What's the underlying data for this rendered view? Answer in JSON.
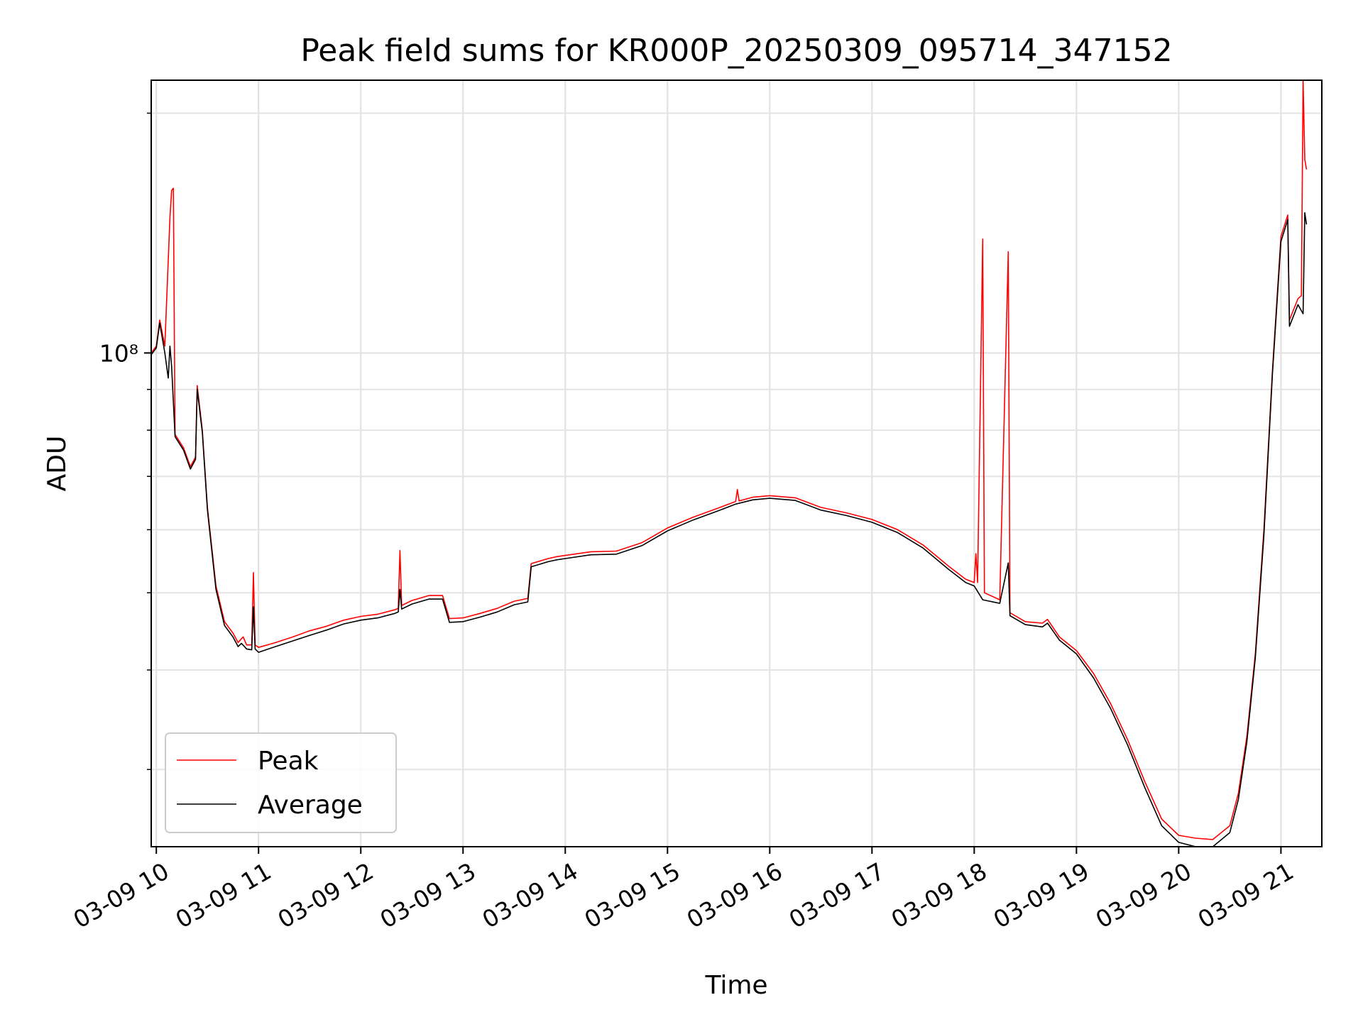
{
  "chart_data": {
    "type": "line",
    "title": "Peak field sums for KR000P_20250309_095714_347152",
    "xlabel": "Time",
    "ylabel": "ADU",
    "y_scale": "log",
    "grid": true,
    "legend_placement": "lower-left",
    "xlim": [
      "2025-03-09 09:57",
      "2025-03-09 21:24"
    ],
    "ylim": [
      24000000,
      220000000
    ],
    "x_ticks": [
      {
        "t": "2025-03-09 10:00",
        "label": "03-09 10"
      },
      {
        "t": "2025-03-09 11:00",
        "label": "03-09 11"
      },
      {
        "t": "2025-03-09 12:00",
        "label": "03-09 12"
      },
      {
        "t": "2025-03-09 13:00",
        "label": "03-09 13"
      },
      {
        "t": "2025-03-09 14:00",
        "label": "03-09 14"
      },
      {
        "t": "2025-03-09 15:00",
        "label": "03-09 15"
      },
      {
        "t": "2025-03-09 16:00",
        "label": "03-09 16"
      },
      {
        "t": "2025-03-09 17:00",
        "label": "03-09 17"
      },
      {
        "t": "2025-03-09 18:00",
        "label": "03-09 18"
      },
      {
        "t": "2025-03-09 19:00",
        "label": "03-09 19"
      },
      {
        "t": "2025-03-09 20:00",
        "label": "03-09 20"
      },
      {
        "t": "2025-03-09 21:00",
        "label": "03-09 21"
      }
    ],
    "y_ticks": [
      {
        "value": 100000000,
        "label": "10⁸"
      }
    ],
    "series": [
      {
        "name": "Peak",
        "color": "#ff0000",
        "points": [
          [
            "2025-03-09 09:57",
            100000000
          ],
          [
            "2025-03-09 10:00",
            102000000
          ],
          [
            "2025-03-09 10:02",
            110000000
          ],
          [
            "2025-03-09 10:05",
            102000000
          ],
          [
            "2025-03-09 10:08",
            148000000
          ],
          [
            "2025-03-09 10:09",
            160000000
          ],
          [
            "2025-03-09 10:10",
            161000000
          ],
          [
            "2025-03-09 10:11",
            79000000
          ],
          [
            "2025-03-09 10:16",
            76000000
          ],
          [
            "2025-03-09 10:20",
            72000000
          ],
          [
            "2025-03-09 10:23",
            74000000
          ],
          [
            "2025-03-09 10:24",
            91000000
          ],
          [
            "2025-03-09 10:27",
            80000000
          ],
          [
            "2025-03-09 10:30",
            64000000
          ],
          [
            "2025-03-09 10:35",
            51000000
          ],
          [
            "2025-03-09 10:40",
            46000000
          ],
          [
            "2025-03-09 10:45",
            44500000
          ],
          [
            "2025-03-09 10:48",
            43300000
          ],
          [
            "2025-03-09 10:50",
            43800000
          ],
          [
            "2025-03-09 10:51",
            44000000
          ],
          [
            "2025-03-09 10:53",
            43000000
          ],
          [
            "2025-03-09 10:56",
            43000000
          ],
          [
            "2025-03-09 10:57",
            53000000
          ],
          [
            "2025-03-09 10:58",
            43000000
          ],
          [
            "2025-03-09 11:00",
            42700000
          ],
          [
            "2025-03-09 11:10",
            43300000
          ],
          [
            "2025-03-09 11:20",
            44000000
          ],
          [
            "2025-03-09 11:30",
            44800000
          ],
          [
            "2025-03-09 11:40",
            45400000
          ],
          [
            "2025-03-09 11:50",
            46200000
          ],
          [
            "2025-03-09 12:00",
            46700000
          ],
          [
            "2025-03-09 12:10",
            47000000
          ],
          [
            "2025-03-09 12:20",
            47600000
          ],
          [
            "2025-03-09 12:22",
            47800000
          ],
          [
            "2025-03-09 12:23",
            56500000
          ],
          [
            "2025-03-09 12:24",
            48200000
          ],
          [
            "2025-03-09 12:30",
            48900000
          ],
          [
            "2025-03-09 12:40",
            49600000
          ],
          [
            "2025-03-09 12:48",
            49600000
          ],
          [
            "2025-03-09 12:52",
            46400000
          ],
          [
            "2025-03-09 13:00",
            46500000
          ],
          [
            "2025-03-09 13:10",
            47100000
          ],
          [
            "2025-03-09 13:20",
            47800000
          ],
          [
            "2025-03-09 13:30",
            48800000
          ],
          [
            "2025-03-09 13:38",
            49200000
          ],
          [
            "2025-03-09 13:40",
            54400000
          ],
          [
            "2025-03-09 13:50",
            55200000
          ],
          [
            "2025-03-09 13:55",
            55500000
          ],
          [
            "2025-03-09 14:00",
            55700000
          ],
          [
            "2025-03-09 14:15",
            56300000
          ],
          [
            "2025-03-09 14:30",
            56400000
          ],
          [
            "2025-03-09 14:45",
            57800000
          ],
          [
            "2025-03-09 15:00",
            60300000
          ],
          [
            "2025-03-09 15:15",
            62200000
          ],
          [
            "2025-03-09 15:30",
            63900000
          ],
          [
            "2025-03-09 15:40",
            65100000
          ],
          [
            "2025-03-09 15:41",
            67400000
          ],
          [
            "2025-03-09 15:42",
            65200000
          ],
          [
            "2025-03-09 15:50",
            65900000
          ],
          [
            "2025-03-09 16:00",
            66200000
          ],
          [
            "2025-03-09 16:15",
            65800000
          ],
          [
            "2025-03-09 16:30",
            64000000
          ],
          [
            "2025-03-09 16:45",
            63000000
          ],
          [
            "2025-03-09 17:00",
            61800000
          ],
          [
            "2025-03-09 17:15",
            60000000
          ],
          [
            "2025-03-09 17:30",
            57400000
          ],
          [
            "2025-03-09 17:45",
            54000000
          ],
          [
            "2025-03-09 17:55",
            52000000
          ],
          [
            "2025-03-09 18:00",
            51500000
          ],
          [
            "2025-03-09 18:01",
            56000000
          ],
          [
            "2025-03-09 18:02",
            51500000
          ],
          [
            "2025-03-09 18:05",
            139000000
          ],
          [
            "2025-03-09 18:06",
            50000000
          ],
          [
            "2025-03-09 18:15",
            49000000
          ],
          [
            "2025-03-09 18:20",
            134000000
          ],
          [
            "2025-03-09 18:21",
            47200000
          ],
          [
            "2025-03-09 18:30",
            46000000
          ],
          [
            "2025-03-09 18:40",
            45800000
          ],
          [
            "2025-03-09 18:43",
            46300000
          ],
          [
            "2025-03-09 18:50",
            44000000
          ],
          [
            "2025-03-09 19:00",
            42300000
          ],
          [
            "2025-03-09 19:10",
            39600000
          ],
          [
            "2025-03-09 19:20",
            36300000
          ],
          [
            "2025-03-09 19:30",
            32700000
          ],
          [
            "2025-03-09 19:40",
            29000000
          ],
          [
            "2025-03-09 19:50",
            26000000
          ],
          [
            "2025-03-09 20:00",
            24800000
          ],
          [
            "2025-03-09 20:10",
            24600000
          ],
          [
            "2025-03-09 20:20",
            24500000
          ],
          [
            "2025-03-09 20:30",
            25500000
          ],
          [
            "2025-03-09 20:35",
            28000000
          ],
          [
            "2025-03-09 20:40",
            33000000
          ],
          [
            "2025-03-09 20:45",
            42000000
          ],
          [
            "2025-03-09 20:50",
            60000000
          ],
          [
            "2025-03-09 20:55",
            95000000
          ],
          [
            "2025-03-09 21:00",
            140000000
          ],
          [
            "2025-03-09 21:04",
            149000000
          ],
          [
            "2025-03-09 21:05",
            110000000
          ],
          [
            "2025-03-09 21:10",
            117000000
          ],
          [
            "2025-03-09 21:12",
            118000000
          ],
          [
            "2025-03-09 21:13",
            220000000
          ],
          [
            "2025-03-09 21:14",
            175000000
          ],
          [
            "2025-03-09 21:15",
            170000000
          ]
        ]
      },
      {
        "name": "Average",
        "color": "#000000",
        "points": [
          [
            "2025-03-09 09:57",
            99500000
          ],
          [
            "2025-03-09 10:00",
            101500000
          ],
          [
            "2025-03-09 10:02",
            109000000
          ],
          [
            "2025-03-09 10:05",
            100000000
          ],
          [
            "2025-03-09 10:07",
            93000000
          ],
          [
            "2025-03-09 10:08",
            102000000
          ],
          [
            "2025-03-09 10:09",
            96000000
          ],
          [
            "2025-03-09 10:11",
            78500000
          ],
          [
            "2025-03-09 10:16",
            75500000
          ],
          [
            "2025-03-09 10:20",
            71500000
          ],
          [
            "2025-03-09 10:23",
            73500000
          ],
          [
            "2025-03-09 10:24",
            90000000
          ],
          [
            "2025-03-09 10:27",
            79500000
          ],
          [
            "2025-03-09 10:30",
            63500000
          ],
          [
            "2025-03-09 10:35",
            50500000
          ],
          [
            "2025-03-09 10:40",
            45500000
          ],
          [
            "2025-03-09 10:45",
            44000000
          ],
          [
            "2025-03-09 10:48",
            42800000
          ],
          [
            "2025-03-09 10:50",
            43200000
          ],
          [
            "2025-03-09 10:53",
            42500000
          ],
          [
            "2025-03-09 10:56",
            42400000
          ],
          [
            "2025-03-09 10:57",
            48000000
          ],
          [
            "2025-03-09 10:58",
            42500000
          ],
          [
            "2025-03-09 11:00",
            42100000
          ],
          [
            "2025-03-09 11:10",
            42800000
          ],
          [
            "2025-03-09 11:20",
            43500000
          ],
          [
            "2025-03-09 11:30",
            44200000
          ],
          [
            "2025-03-09 11:40",
            44900000
          ],
          [
            "2025-03-09 11:50",
            45700000
          ],
          [
            "2025-03-09 12:00",
            46200000
          ],
          [
            "2025-03-09 12:10",
            46500000
          ],
          [
            "2025-03-09 12:20",
            47100000
          ],
          [
            "2025-03-09 12:22",
            47300000
          ],
          [
            "2025-03-09 12:23",
            50500000
          ],
          [
            "2025-03-09 12:24",
            47700000
          ],
          [
            "2025-03-09 12:30",
            48400000
          ],
          [
            "2025-03-09 12:40",
            49100000
          ],
          [
            "2025-03-09 12:48",
            49100000
          ],
          [
            "2025-03-09 12:52",
            45900000
          ],
          [
            "2025-03-09 13:00",
            46000000
          ],
          [
            "2025-03-09 13:10",
            46600000
          ],
          [
            "2025-03-09 13:20",
            47300000
          ],
          [
            "2025-03-09 13:30",
            48300000
          ],
          [
            "2025-03-09 13:38",
            48700000
          ],
          [
            "2025-03-09 13:40",
            53900000
          ],
          [
            "2025-03-09 13:50",
            54700000
          ],
          [
            "2025-03-09 13:55",
            55000000
          ],
          [
            "2025-03-09 14:00",
            55200000
          ],
          [
            "2025-03-09 14:15",
            55800000
          ],
          [
            "2025-03-09 14:30",
            55900000
          ],
          [
            "2025-03-09 14:45",
            57300000
          ],
          [
            "2025-03-09 15:00",
            59800000
          ],
          [
            "2025-03-09 15:15",
            61700000
          ],
          [
            "2025-03-09 15:30",
            63400000
          ],
          [
            "2025-03-09 15:40",
            64600000
          ],
          [
            "2025-03-09 15:50",
            65400000
          ],
          [
            "2025-03-09 16:00",
            65700000
          ],
          [
            "2025-03-09 16:15",
            65300000
          ],
          [
            "2025-03-09 16:30",
            63500000
          ],
          [
            "2025-03-09 16:45",
            62500000
          ],
          [
            "2025-03-09 17:00",
            61300000
          ],
          [
            "2025-03-09 17:15",
            59500000
          ],
          [
            "2025-03-09 17:30",
            56900000
          ],
          [
            "2025-03-09 17:45",
            53500000
          ],
          [
            "2025-03-09 17:55",
            51500000
          ],
          [
            "2025-03-09 18:00",
            51000000
          ],
          [
            "2025-03-09 18:05",
            49000000
          ],
          [
            "2025-03-09 18:15",
            48500000
          ],
          [
            "2025-03-09 18:20",
            54500000
          ],
          [
            "2025-03-09 18:21",
            46800000
          ],
          [
            "2025-03-09 18:30",
            45600000
          ],
          [
            "2025-03-09 18:40",
            45300000
          ],
          [
            "2025-03-09 18:43",
            45800000
          ],
          [
            "2025-03-09 18:50",
            43600000
          ],
          [
            "2025-03-09 19:00",
            41900000
          ],
          [
            "2025-03-09 19:10",
            39100000
          ],
          [
            "2025-03-09 19:20",
            35800000
          ],
          [
            "2025-03-09 19:30",
            32200000
          ],
          [
            "2025-03-09 19:40",
            28500000
          ],
          [
            "2025-03-09 19:50",
            25500000
          ],
          [
            "2025-03-09 20:00",
            24300000
          ],
          [
            "2025-03-09 20:10",
            24000000
          ],
          [
            "2025-03-09 20:20",
            24000000
          ],
          [
            "2025-03-09 20:30",
            25000000
          ],
          [
            "2025-03-09 20:35",
            27500000
          ],
          [
            "2025-03-09 20:40",
            32500000
          ],
          [
            "2025-03-09 20:45",
            41500000
          ],
          [
            "2025-03-09 20:50",
            59000000
          ],
          [
            "2025-03-09 20:55",
            94000000
          ],
          [
            "2025-03-09 21:00",
            138000000
          ],
          [
            "2025-03-09 21:04",
            147000000
          ],
          [
            "2025-03-09 21:05",
            108000000
          ],
          [
            "2025-03-09 21:10",
            115000000
          ],
          [
            "2025-03-09 21:13",
            112000000
          ],
          [
            "2025-03-09 21:14",
            150000000
          ],
          [
            "2025-03-09 21:15",
            145000000
          ]
        ]
      }
    ]
  }
}
